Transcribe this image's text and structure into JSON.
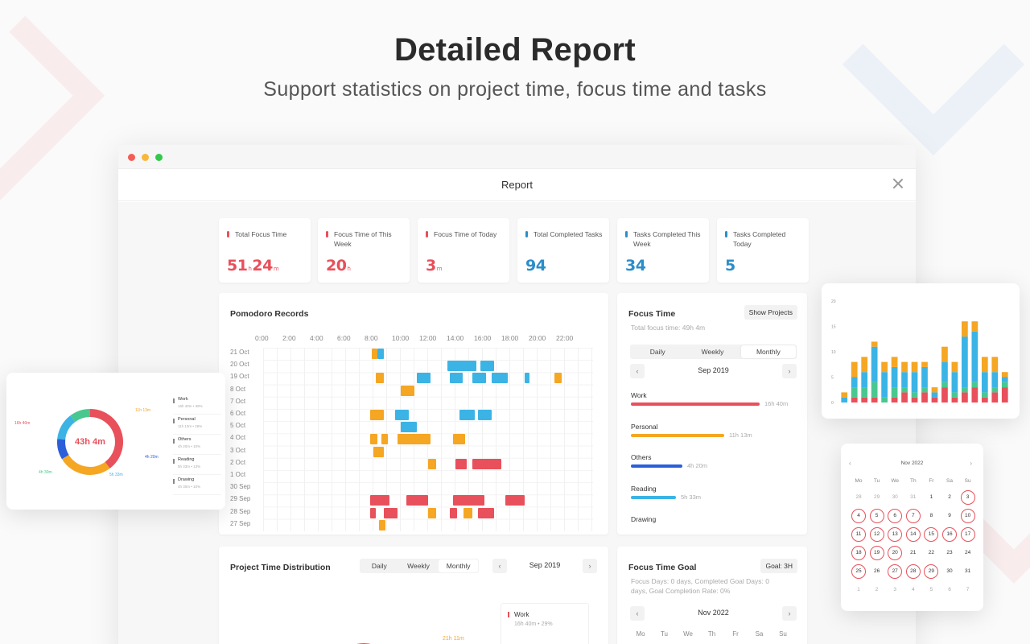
{
  "hero": {
    "title": "Detailed Report",
    "subtitle": "Support statistics on project time, focus time and tasks"
  },
  "window": {
    "title": "Report"
  },
  "stats": [
    {
      "label": "Total Focus Time",
      "value": "51",
      "unit1": "h",
      "value2": "24",
      "unit2": "m",
      "color": "#e8505b"
    },
    {
      "label": "Focus Time of This Week",
      "value": "20",
      "unit1": "h",
      "color": "#e8505b"
    },
    {
      "label": "Focus Time of Today",
      "value": "3",
      "unit1": "m",
      "color": "#e8505b"
    },
    {
      "label": "Total Completed Tasks",
      "value": "94",
      "color": "#2b8ec9"
    },
    {
      "label": "Tasks Completed This Week",
      "value": "34",
      "color": "#2b8ec9"
    },
    {
      "label": "Tasks Completed Today",
      "value": "5",
      "color": "#2b8ec9"
    }
  ],
  "pomodoro": {
    "title": "Pomodoro Records",
    "times": [
      "0:00",
      "2:00",
      "4:00",
      "6:00",
      "8:00",
      "10:00",
      "12:00",
      "14:00",
      "16:00",
      "18:00",
      "20:00",
      "22:00"
    ],
    "rows": [
      "21 Oct",
      "20 Oct",
      "19 Oct",
      "8 Oct",
      "7 Oct",
      "6 Oct",
      "5 Oct",
      "4 Oct",
      "3 Oct",
      "2 Oct",
      "1 Oct",
      "30 Sep",
      "29 Sep",
      "28 Sep",
      "27 Sep"
    ],
    "blocks": [
      {
        "row": 0,
        "start": 7.9,
        "end": 8.3,
        "color": "#f5a623"
      },
      {
        "row": 0,
        "start": 8.3,
        "end": 8.8,
        "color": "#3bb4e5"
      },
      {
        "row": 1,
        "start": 13.4,
        "end": 15.5,
        "color": "#3bb4e5"
      },
      {
        "row": 1,
        "start": 15.8,
        "end": 16.8,
        "color": "#3bb4e5"
      },
      {
        "row": 2,
        "start": 8.2,
        "end": 8.8,
        "color": "#f5a623"
      },
      {
        "row": 2,
        "start": 11.2,
        "end": 12.2,
        "color": "#3bb4e5"
      },
      {
        "row": 2,
        "start": 13.6,
        "end": 14.5,
        "color": "#3bb4e5"
      },
      {
        "row": 2,
        "start": 15.2,
        "end": 16.2,
        "color": "#3bb4e5"
      },
      {
        "row": 2,
        "start": 16.6,
        "end": 17.8,
        "color": "#3bb4e5"
      },
      {
        "row": 2,
        "start": 19.0,
        "end": 19.4,
        "color": "#3bb4e5"
      },
      {
        "row": 2,
        "start": 21.2,
        "end": 21.7,
        "color": "#f5a623"
      },
      {
        "row": 3,
        "start": 10.0,
        "end": 11.0,
        "color": "#f5a623"
      },
      {
        "row": 5,
        "start": 7.8,
        "end": 8.8,
        "color": "#f5a623"
      },
      {
        "row": 5,
        "start": 9.6,
        "end": 10.6,
        "color": "#3bb4e5"
      },
      {
        "row": 5,
        "start": 14.3,
        "end": 15.4,
        "color": "#3bb4e5"
      },
      {
        "row": 5,
        "start": 15.6,
        "end": 16.6,
        "color": "#3bb4e5"
      },
      {
        "row": 6,
        "start": 10.0,
        "end": 11.2,
        "color": "#3bb4e5"
      },
      {
        "row": 7,
        "start": 7.8,
        "end": 8.3,
        "color": "#f5a623"
      },
      {
        "row": 7,
        "start": 8.6,
        "end": 9.1,
        "color": "#f5a623"
      },
      {
        "row": 7,
        "start": 9.8,
        "end": 12.2,
        "color": "#f5a623"
      },
      {
        "row": 7,
        "start": 13.8,
        "end": 14.7,
        "color": "#f5a623"
      },
      {
        "row": 8,
        "start": 8.0,
        "end": 8.8,
        "color": "#f5a623"
      },
      {
        "row": 9,
        "start": 12.0,
        "end": 12.6,
        "color": "#f5a623"
      },
      {
        "row": 9,
        "start": 14.0,
        "end": 14.8,
        "color": "#e8505b"
      },
      {
        "row": 9,
        "start": 15.2,
        "end": 17.3,
        "color": "#e8505b"
      },
      {
        "row": 12,
        "start": 7.8,
        "end": 9.2,
        "color": "#e8505b"
      },
      {
        "row": 12,
        "start": 10.4,
        "end": 12.0,
        "color": "#e8505b"
      },
      {
        "row": 12,
        "start": 13.8,
        "end": 16.1,
        "color": "#e8505b"
      },
      {
        "row": 12,
        "start": 17.6,
        "end": 19.0,
        "color": "#e8505b"
      },
      {
        "row": 13,
        "start": 7.8,
        "end": 8.2,
        "color": "#e8505b"
      },
      {
        "row": 13,
        "start": 8.8,
        "end": 9.8,
        "color": "#e8505b"
      },
      {
        "row": 13,
        "start": 12.0,
        "end": 12.6,
        "color": "#f5a623"
      },
      {
        "row": 13,
        "start": 13.6,
        "end": 14.1,
        "color": "#e8505b"
      },
      {
        "row": 13,
        "start": 14.6,
        "end": 15.2,
        "color": "#f5a623"
      },
      {
        "row": 13,
        "start": 15.6,
        "end": 16.8,
        "color": "#e8505b"
      },
      {
        "row": 14,
        "start": 8.4,
        "end": 8.9,
        "color": "#f5a623"
      }
    ]
  },
  "focus_time": {
    "title": "Focus Time",
    "show_projects": "Show Projects",
    "total_label": "Total focus time: 49h 4m",
    "tabs": [
      "Daily",
      "Weekly",
      "Monthly"
    ],
    "active_tab": 2,
    "period": "Sep 2019",
    "projects": [
      {
        "name": "Work",
        "time": "16h 40m",
        "fraction": 0.8,
        "color": "#e8505b"
      },
      {
        "name": "Personal",
        "time": "11h 13m",
        "fraction": 0.58,
        "color": "#f5a623"
      },
      {
        "name": "Others",
        "time": "4h 20m",
        "fraction": 0.32,
        "color": "#2b5fd9"
      },
      {
        "name": "Reading",
        "time": "5h 33m",
        "fraction": 0.28,
        "color": "#3bb4e5"
      },
      {
        "name": "Drawing",
        "time": "",
        "fraction": 0,
        "color": "#aaaaaa"
      }
    ]
  },
  "project_distribution": {
    "title": "Project Time Distribution",
    "tabs": [
      "Daily",
      "Weekly",
      "Monthly"
    ],
    "active_tab": 2,
    "period": "Sep 2019",
    "legend": [
      {
        "name": "Work",
        "detail": "16h 40m • 29%"
      }
    ],
    "slice_label": "21h 11m"
  },
  "focus_goal": {
    "title": "Focus Time Goal",
    "goal": "Goal: 3H",
    "line1": "Focus Days: 0 days,  Completed Goal Days: 0",
    "line2": "days,  Goal Completion Rate: 0%",
    "period": "Nov 2022",
    "weekdays": [
      "Mo",
      "Tu",
      "We",
      "Th",
      "Fr",
      "Sa",
      "Su"
    ]
  },
  "donut_card": {
    "center": "43h 4m",
    "legend": [
      {
        "name": "Work",
        "sub": "16h 40m • 39%"
      },
      {
        "name": "Personal",
        "sub": "11h 13m • 26%"
      },
      {
        "name": "Others",
        "sub": "4h 20m • 10%"
      },
      {
        "name": "Reading",
        "sub": "5h 33m • 13%"
      },
      {
        "name": "Drawing",
        "sub": "4h 30m • 10%"
      }
    ],
    "labels": [
      "16h 40m",
      "11h 13m",
      "4h 20m",
      "5h 33m",
      "4h 30m"
    ],
    "chart_data": {
      "type": "pie",
      "categories": [
        "Work",
        "Personal",
        "Others",
        "Reading",
        "Drawing"
      ],
      "values": [
        39,
        26,
        10,
        13,
        10
      ],
      "colors": [
        "#e8505b",
        "#f5a623",
        "#2b5fd9",
        "#3bb4e5",
        "#48c88f"
      ]
    }
  },
  "bar_card": {
    "y_ticks": [
      "0",
      "5",
      "10",
      "15",
      "20"
    ],
    "chart_data": {
      "type": "bar",
      "stacked": true,
      "ylim": [
        0,
        20
      ],
      "series": [
        {
          "name": "Work",
          "color": "#e8505b",
          "values": [
            0,
            1,
            1,
            1,
            0,
            1,
            2,
            1,
            2,
            1,
            3,
            1,
            2,
            3,
            1,
            2,
            3
          ]
        },
        {
          "name": "Reading",
          "color": "#48c88f",
          "values": [
            0,
            2,
            2,
            3,
            1,
            2,
            1,
            1,
            1,
            0,
            1,
            1,
            1,
            1,
            1,
            1,
            1
          ]
        },
        {
          "name": "Others",
          "color": "#3bb4e5",
          "values": [
            1,
            2,
            3,
            7,
            5,
            4,
            3,
            4,
            4,
            1,
            4,
            4,
            10,
            10,
            4,
            3,
            1
          ]
        },
        {
          "name": "Personal",
          "color": "#f5a623",
          "values": [
            1,
            3,
            3,
            1,
            2,
            2,
            2,
            2,
            1,
            1,
            3,
            2,
            3,
            2,
            3,
            3,
            1
          ]
        }
      ]
    }
  },
  "cal_card": {
    "period": "Nov 2022",
    "weekdays": [
      "Mo",
      "Tu",
      "We",
      "Th",
      "Fr",
      "Sa",
      "Su"
    ],
    "days": [
      {
        "d": "28",
        "ring": false,
        "dim": true
      },
      {
        "d": "29",
        "ring": false,
        "dim": true
      },
      {
        "d": "30",
        "ring": false,
        "dim": true
      },
      {
        "d": "31",
        "ring": false,
        "dim": true
      },
      {
        "d": "1",
        "ring": false
      },
      {
        "d": "2",
        "ring": false
      },
      {
        "d": "3",
        "ring": true
      },
      {
        "d": "4",
        "ring": true
      },
      {
        "d": "5",
        "ring": true
      },
      {
        "d": "6",
        "ring": true
      },
      {
        "d": "7",
        "ring": true
      },
      {
        "d": "8",
        "ring": false
      },
      {
        "d": "9",
        "ring": false
      },
      {
        "d": "10",
        "ring": true
      },
      {
        "d": "11",
        "ring": true
      },
      {
        "d": "12",
        "ring": true
      },
      {
        "d": "13",
        "ring": true
      },
      {
        "d": "14",
        "ring": true
      },
      {
        "d": "15",
        "ring": true
      },
      {
        "d": "16",
        "ring": true
      },
      {
        "d": "17",
        "ring": true
      },
      {
        "d": "18",
        "ring": true
      },
      {
        "d": "19",
        "ring": true
      },
      {
        "d": "20",
        "ring": true
      },
      {
        "d": "21",
        "ring": false
      },
      {
        "d": "22",
        "ring": false
      },
      {
        "d": "23",
        "ring": false
      },
      {
        "d": "24",
        "ring": false
      },
      {
        "d": "25",
        "ring": true
      },
      {
        "d": "26",
        "ring": false
      },
      {
        "d": "27",
        "ring": true
      },
      {
        "d": "28",
        "ring": true
      },
      {
        "d": "29",
        "ring": true
      },
      {
        "d": "30",
        "ring": false
      },
      {
        "d": "31",
        "ring": false
      },
      {
        "d": "1",
        "ring": false,
        "dim": true
      },
      {
        "d": "2",
        "ring": false,
        "dim": true
      },
      {
        "d": "3",
        "ring": false,
        "dim": true
      },
      {
        "d": "4",
        "ring": false,
        "dim": true
      },
      {
        "d": "5",
        "ring": false,
        "dim": true
      },
      {
        "d": "6",
        "ring": false,
        "dim": true
      },
      {
        "d": "7",
        "ring": false,
        "dim": true
      }
    ]
  }
}
